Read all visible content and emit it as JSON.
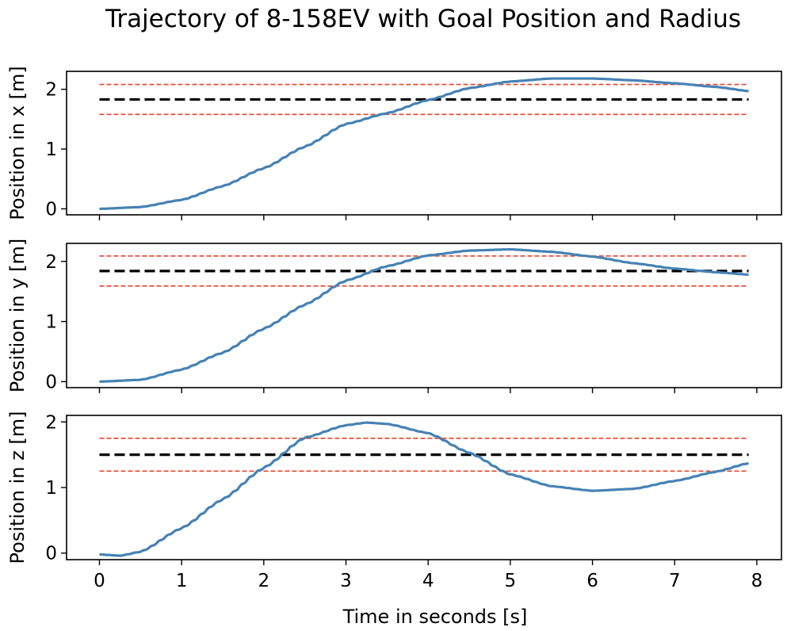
{
  "chart_data": {
    "type": "line",
    "title": "Trajectory of 8-158EV with Goal Position and Radius",
    "xlabel": "Time in seconds [s]",
    "x_range": [
      0,
      7.9
    ],
    "xlim": [
      -0.4,
      8.3
    ],
    "xticks": [
      0,
      1,
      2,
      3,
      4,
      5,
      6,
      7,
      8
    ],
    "colors": {
      "trajectory": "#4682b4",
      "goal": "#000000",
      "radius": "#e8442c"
    },
    "subplots": [
      {
        "ylabel": "Position in x [m]",
        "ylim": [
          -0.1,
          2.3
        ],
        "yticks": [
          0,
          1,
          2
        ],
        "goal": 1.83,
        "radius": 0.25,
        "trajectory_points": [
          [
            0,
            0
          ],
          [
            0.5,
            0.03
          ],
          [
            1,
            0.15
          ],
          [
            1.5,
            0.38
          ],
          [
            2,
            0.68
          ],
          [
            2.5,
            1.04
          ],
          [
            3,
            1.42
          ],
          [
            3.5,
            1.6
          ],
          [
            4,
            1.82
          ],
          [
            4.5,
            2.02
          ],
          [
            5,
            2.13
          ],
          [
            5.5,
            2.18
          ],
          [
            6,
            2.18
          ],
          [
            6.5,
            2.15
          ],
          [
            7,
            2.1
          ],
          [
            7.5,
            2.04
          ],
          [
            7.9,
            1.97
          ]
        ]
      },
      {
        "ylabel": "Position in y [m]",
        "ylim": [
          -0.1,
          2.3
        ],
        "yticks": [
          0,
          1,
          2
        ],
        "goal": 1.84,
        "radius": 0.25,
        "trajectory_points": [
          [
            0,
            0
          ],
          [
            0.5,
            0.03
          ],
          [
            1,
            0.2
          ],
          [
            1.5,
            0.48
          ],
          [
            2,
            0.88
          ],
          [
            2.5,
            1.28
          ],
          [
            3,
            1.68
          ],
          [
            3.5,
            1.92
          ],
          [
            4,
            2.1
          ],
          [
            4.5,
            2.18
          ],
          [
            5,
            2.2
          ],
          [
            5.5,
            2.16
          ],
          [
            6,
            2.08
          ],
          [
            6.5,
            1.97
          ],
          [
            7,
            1.88
          ],
          [
            7.5,
            1.82
          ],
          [
            7.9,
            1.78
          ]
        ]
      },
      {
        "ylabel": "Position in z [m]",
        "ylim": [
          -0.1,
          2.1
        ],
        "yticks": [
          0,
          1,
          2
        ],
        "goal": 1.5,
        "radius": 0.25,
        "trajectory_points": [
          [
            0,
            -0.02
          ],
          [
            0.25,
            -0.04
          ],
          [
            0.5,
            0.02
          ],
          [
            1,
            0.38
          ],
          [
            1.5,
            0.82
          ],
          [
            2,
            1.3
          ],
          [
            2.5,
            1.76
          ],
          [
            3,
            1.95
          ],
          [
            3.25,
            1.99
          ],
          [
            3.5,
            1.97
          ],
          [
            4,
            1.83
          ],
          [
            4.5,
            1.53
          ],
          [
            5,
            1.2
          ],
          [
            5.5,
            1.02
          ],
          [
            6,
            0.95
          ],
          [
            6.5,
            0.98
          ],
          [
            7,
            1.1
          ],
          [
            7.5,
            1.24
          ],
          [
            7.9,
            1.37
          ]
        ]
      }
    ]
  }
}
